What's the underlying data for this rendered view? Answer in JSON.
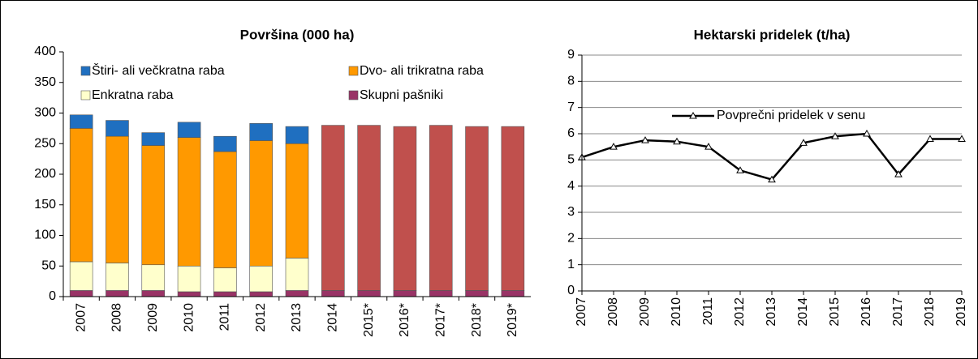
{
  "chart_data": [
    {
      "type": "bar",
      "stacked": true,
      "title": "Površina (000 ha)",
      "categories": [
        "2007",
        "2008",
        "2009",
        "2010",
        "2011",
        "2012",
        "2013",
        "2014",
        "2015*",
        "2016*",
        "2017*",
        "2018*",
        "2019*"
      ],
      "series": [
        {
          "name": "Skupni pašniki",
          "color": "#993366",
          "values": [
            10,
            10,
            10,
            8,
            8,
            8,
            10,
            10,
            10,
            10,
            10,
            10,
            10
          ]
        },
        {
          "name": "Enkratna raba",
          "color": "#ffffcc",
          "values": [
            47,
            45,
            42,
            42,
            39,
            42,
            53,
            null,
            null,
            null,
            null,
            null,
            null
          ]
        },
        {
          "name": "Dvo- ali trikratna raba",
          "color": "#ff9900",
          "values": [
            218,
            207,
            195,
            210,
            190,
            205,
            187,
            null,
            null,
            null,
            null,
            null,
            null
          ]
        },
        {
          "name": "Štiri- ali večkratna raba",
          "color": "#1f6fc0",
          "values": [
            22,
            26,
            21,
            25,
            25,
            28,
            28,
            null,
            null,
            null,
            null,
            null,
            null
          ]
        },
        {
          "color": "#c0504d",
          "values": [
            null,
            null,
            null,
            null,
            null,
            null,
            null,
            270,
            270,
            268,
            270,
            268,
            268
          ]
        }
      ],
      "ylim": [
        0,
        400
      ],
      "yticks": [
        0,
        50,
        100,
        150,
        200,
        250,
        300,
        350,
        400
      ],
      "grid": false
    },
    {
      "type": "line",
      "title": "Hektarski pridelek (t/ha)",
      "categories": [
        "2007",
        "2008",
        "2009",
        "2010",
        "2011",
        "2012",
        "2013",
        "2014",
        "2015",
        "2016",
        "2017",
        "2018",
        "2019"
      ],
      "series": [
        {
          "name": "Povprečni pridelek v senu",
          "color": "#000000",
          "values": [
            5.1,
            5.5,
            5.75,
            5.7,
            5.5,
            4.6,
            4.25,
            5.65,
            5.9,
            6.0,
            4.45,
            5.8,
            5.8
          ]
        }
      ],
      "ylim": [
        0,
        9
      ],
      "yticks": [
        0,
        1,
        2,
        3,
        4,
        5,
        6,
        7,
        8,
        9
      ],
      "grid": true
    }
  ]
}
